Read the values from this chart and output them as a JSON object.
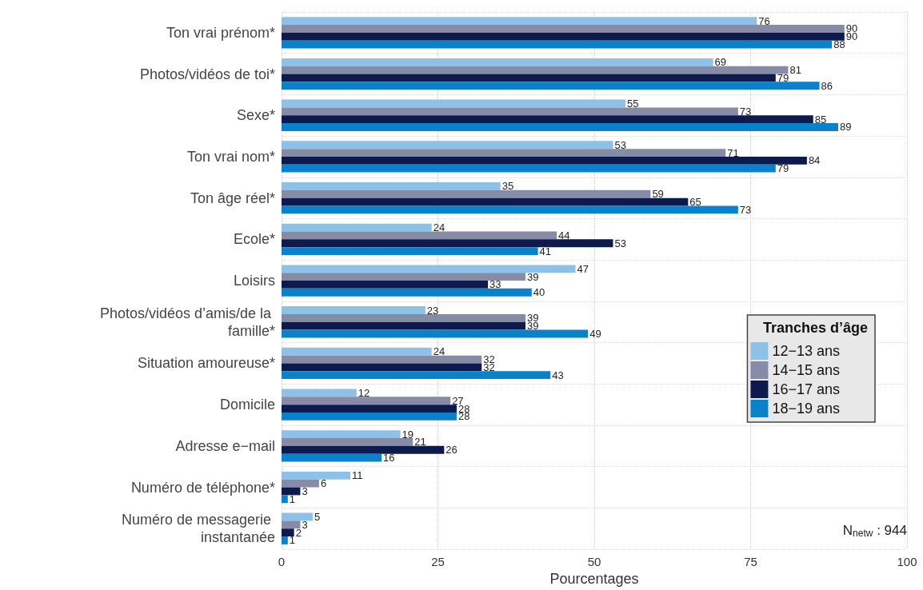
{
  "chart_data": {
    "type": "bar",
    "orientation": "horizontal",
    "xlabel": "Pourcentages",
    "legend_title": "Tranches d’âge",
    "legend": "bottom right",
    "grid": true,
    "data_labels": true,
    "categories": [
      "Ton vrai prénom*",
      "Photos/vidéos de toi*",
      "Sexe*",
      "Ton vrai nom*",
      "Ton âge réel*",
      "Ecole*",
      "Loisirs",
      "Photos/vidéos d’amis/de la famille*",
      "Situation amoureuse*",
      "Domicile",
      "Adresse e−mail",
      "Numéro de téléphone*",
      "Numéro de messagerie instantanée"
    ],
    "xlim": [
      0,
      100
    ],
    "xticks": [
      0,
      25,
      50,
      75,
      100
    ],
    "series": [
      {
        "name": "12−13 ans",
        "color": "#8ec1e8",
        "values": [
          76,
          69,
          55,
          53,
          35,
          24,
          47,
          23,
          24,
          12,
          19,
          11,
          5
        ]
      },
      {
        "name": "14−15 ans",
        "color": "#878ca6",
        "values": [
          90,
          81,
          73,
          71,
          59,
          44,
          39,
          39,
          32,
          27,
          21,
          6,
          3
        ]
      },
      {
        "name": "16−17 ans",
        "color": "#0c1a4e",
        "values": [
          90,
          79,
          85,
          84,
          65,
          53,
          33,
          39,
          32,
          28,
          26,
          3,
          2
        ]
      },
      {
        "name": "18−19 ans",
        "color": "#0a82cb",
        "values": [
          88,
          86,
          89,
          79,
          73,
          41,
          40,
          49,
          43,
          28,
          16,
          1,
          1
        ]
      }
    ],
    "annotations": [
      "N$_{netw}$ : 944"
    ]
  }
}
